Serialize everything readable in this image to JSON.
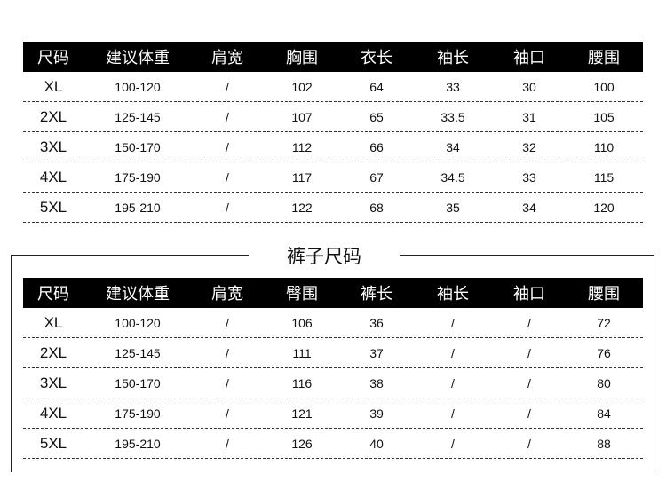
{
  "top_table": {
    "headers": [
      "尺码",
      "建议体重",
      "肩宽",
      "胸围",
      "衣长",
      "袖长",
      "袖口",
      "腰围"
    ],
    "rows": [
      [
        "XL",
        "100-120",
        "/",
        "102",
        "64",
        "33",
        "30",
        "100"
      ],
      [
        "2XL",
        "125-145",
        "/",
        "107",
        "65",
        "33.5",
        "31",
        "105"
      ],
      [
        "3XL",
        "150-170",
        "/",
        "112",
        "66",
        "34",
        "32",
        "110"
      ],
      [
        "4XL",
        "175-190",
        "/",
        "117",
        "67",
        "34.5",
        "33",
        "115"
      ],
      [
        "5XL",
        "195-210",
        "/",
        "122",
        "68",
        "35",
        "34",
        "120"
      ]
    ]
  },
  "pants_section": {
    "title": "裤子尺码",
    "headers": [
      "尺码",
      "建议体重",
      "肩宽",
      "臀围",
      "裤长",
      "袖长",
      "袖口",
      "腰围"
    ],
    "rows": [
      [
        "XL",
        "100-120",
        "/",
        "106",
        "36",
        "/",
        "/",
        "72"
      ],
      [
        "2XL",
        "125-145",
        "/",
        "111",
        "37",
        "/",
        "/",
        "76"
      ],
      [
        "3XL",
        "150-170",
        "/",
        "116",
        "38",
        "/",
        "/",
        "80"
      ],
      [
        "4XL",
        "175-190",
        "/",
        "121",
        "39",
        "/",
        "/",
        "84"
      ],
      [
        "5XL",
        "195-210",
        "/",
        "126",
        "40",
        "/",
        "/",
        "88"
      ]
    ]
  }
}
